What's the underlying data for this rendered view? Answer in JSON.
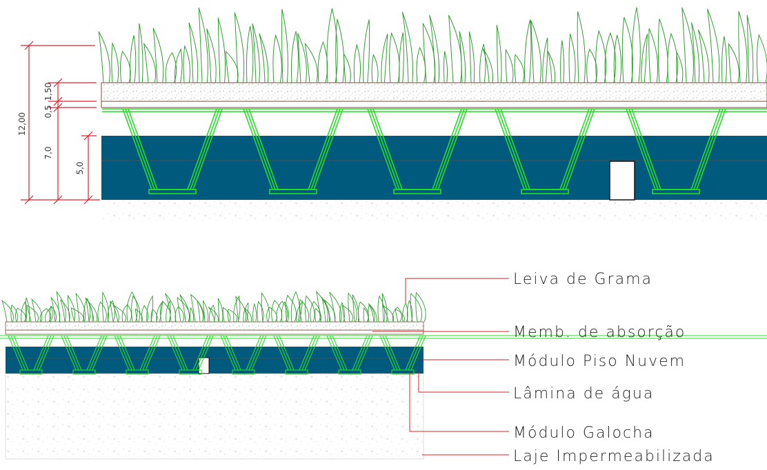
{
  "section": {
    "dimensions": [
      "12,00",
      "1,50",
      "0,5",
      "7,0",
      "5,0"
    ]
  },
  "callouts": [
    {
      "label": "Leiva de Grama"
    },
    {
      "label": "Memb. de absorção"
    },
    {
      "label": "Módulo Piso Nuvem"
    },
    {
      "label": "Lâmina de água"
    },
    {
      "label": "Módulo Galocha"
    },
    {
      "label": "Laje Impermeabilizada"
    }
  ],
  "colors": {
    "grass": "#2e9e2e",
    "module": "#22e022",
    "water": "#005a7d",
    "soil": "#c8c3b2",
    "dimension": "#e0202a",
    "leader": "#d82020"
  }
}
